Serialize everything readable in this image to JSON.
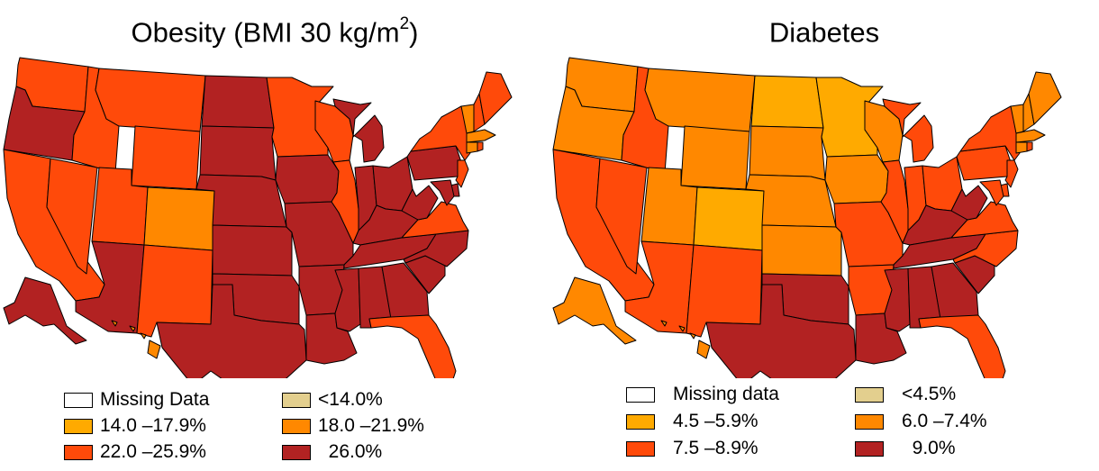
{
  "colors": {
    "missing": "#ffffff",
    "lowest": "#e3cf8e",
    "c1": "#ffaa00",
    "c2": "#ff8800",
    "c3": "#ff4a0a",
    "c4": "#b22222"
  },
  "maps": [
    {
      "id": "obesity",
      "title_prefix": "Obesity (BMI  30 kg/m",
      "title_sup": "2",
      "title_suffix": ")",
      "legend": [
        {
          "label": "Missing Data",
          "color": "#ffffff"
        },
        {
          "label": "<14.0%",
          "color": "#e3cf8e"
        },
        {
          "label": "14.0 –17.9%",
          "color": "#ffaa00"
        },
        {
          "label": "18.0 –21.9%",
          "color": "#ff8800"
        },
        {
          "label": "22.0 –25.9%",
          "color": "#ff4a0a"
        },
        {
          "label": "  26.0%",
          "color": "#b22222"
        }
      ],
      "state_levels": {
        "WA": "c3",
        "OR": "c4",
        "CA": "c3",
        "NV": "c3",
        "ID": "c3",
        "MT": "c3",
        "WY": "c3",
        "UT": "c3",
        "AZ": "c4",
        "CO": "c2",
        "NM": "c3",
        "ND": "c4",
        "SD": "c4",
        "NE": "c4",
        "KS": "c4",
        "OK": "c4",
        "TX": "c4",
        "MN": "c3",
        "IA": "c4",
        "MO": "c4",
        "AR": "c4",
        "LA": "c4",
        "WI": "c3",
        "IL": "c3",
        "MI": "c4",
        "IN": "c4",
        "OH": "c4",
        "KY": "c4",
        "TN": "c4",
        "MS": "c4",
        "AL": "c4",
        "GA": "c4",
        "FL": "c3",
        "SC": "c4",
        "NC": "c4",
        "VA": "c3",
        "WV": "c4",
        "PA": "c4",
        "NY": "c3",
        "VT": "c2",
        "NH": "c3",
        "ME": "c3",
        "MA": "c2",
        "CT": "c2",
        "RI": "c3",
        "NJ": "c3",
        "DE": "c4",
        "MD": "c4",
        "AK": "c4",
        "HI": "c2"
      }
    },
    {
      "id": "diabetes",
      "title_prefix": "Diabetes",
      "title_sup": "",
      "title_suffix": "",
      "legend": [
        {
          "label": "Missing data",
          "color": "#ffffff"
        },
        {
          "label": "<4.5%",
          "color": "#e3cf8e"
        },
        {
          "label": "4.5 –5.9%",
          "color": "#ffaa00"
        },
        {
          "label": "6.0 –7.4%",
          "color": "#ff8800"
        },
        {
          "label": "7.5 –8.9%",
          "color": "#ff4a0a"
        },
        {
          "label": "  9.0%",
          "color": "#b22222"
        }
      ],
      "state_levels": {
        "WA": "c2",
        "OR": "c2",
        "CA": "c3",
        "NV": "c3",
        "ID": "c3",
        "MT": "c2",
        "WY": "c2",
        "UT": "c2",
        "AZ": "c3",
        "CO": "c1",
        "NM": "c3",
        "ND": "c1",
        "SD": "c2",
        "NE": "c2",
        "KS": "c2",
        "OK": "c4",
        "TX": "c4",
        "MN": "c1",
        "IA": "c2",
        "MO": "c3",
        "AR": "c3",
        "LA": "c4",
        "WI": "c2",
        "IL": "c3",
        "MI": "c3",
        "IN": "c3",
        "OH": "c3",
        "KY": "c4",
        "TN": "c4",
        "MS": "c4",
        "AL": "c4",
        "GA": "c4",
        "FL": "c3",
        "SC": "c4",
        "NC": "c3",
        "VA": "c3",
        "WV": "c4",
        "PA": "c3",
        "NY": "c3",
        "VT": "c2",
        "NH": "c2",
        "ME": "c2",
        "MA": "c2",
        "CT": "c2",
        "RI": "c3",
        "NJ": "c3",
        "DE": "c3",
        "MD": "c3",
        "AK": "c2",
        "HI": "c2"
      }
    }
  ]
}
